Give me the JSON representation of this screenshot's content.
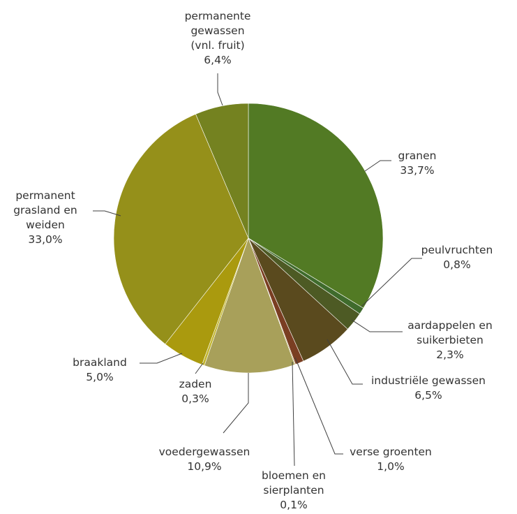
{
  "chart_data": {
    "type": "pie",
    "title": "",
    "start_angle_deg": 0,
    "direction": "clockwise",
    "slices": [
      {
        "label": [
          "granen"
        ],
        "value": 33.7,
        "value_label": "33,7%",
        "color": "#527a24"
      },
      {
        "label": [
          "peulvruchten"
        ],
        "value": 0.8,
        "value_label": "0,8%",
        "color": "#3f6b2c"
      },
      {
        "label": [
          "aardappelen en",
          "suikerbieten"
        ],
        "value": 2.3,
        "value_label": "2,3%",
        "color": "#4d5a24"
      },
      {
        "label": [
          "industriële gewassen"
        ],
        "value": 6.5,
        "value_label": "6,5%",
        "color": "#5a4a1e"
      },
      {
        "label": [
          "verse groenten"
        ],
        "value": 1.0,
        "value_label": "1,0%",
        "color": "#7a3e22"
      },
      {
        "label": [
          "bloemen en",
          "sierplanten"
        ],
        "value": 0.1,
        "value_label": "0,1%",
        "color": "#b39a4a"
      },
      {
        "label": [
          "voedergewassen"
        ],
        "value": 10.9,
        "value_label": "10,9%",
        "color": "#a8a05a"
      },
      {
        "label": [
          "zaden"
        ],
        "value": 0.3,
        "value_label": "0,3%",
        "color": "#c2b52e"
      },
      {
        "label": [
          "braakland"
        ],
        "value": 5.0,
        "value_label": "5,0%",
        "color": "#aa9a0e"
      },
      {
        "label": [
          "permanent",
          "grasland en",
          "weiden"
        ],
        "value": 33.0,
        "value_label": "33,0%",
        "color": "#95901a"
      },
      {
        "label": [
          "permanente",
          "gewassen",
          "(vnl. fruit)"
        ],
        "value": 6.4,
        "value_label": "6,4%",
        "color": "#748220"
      }
    ]
  }
}
